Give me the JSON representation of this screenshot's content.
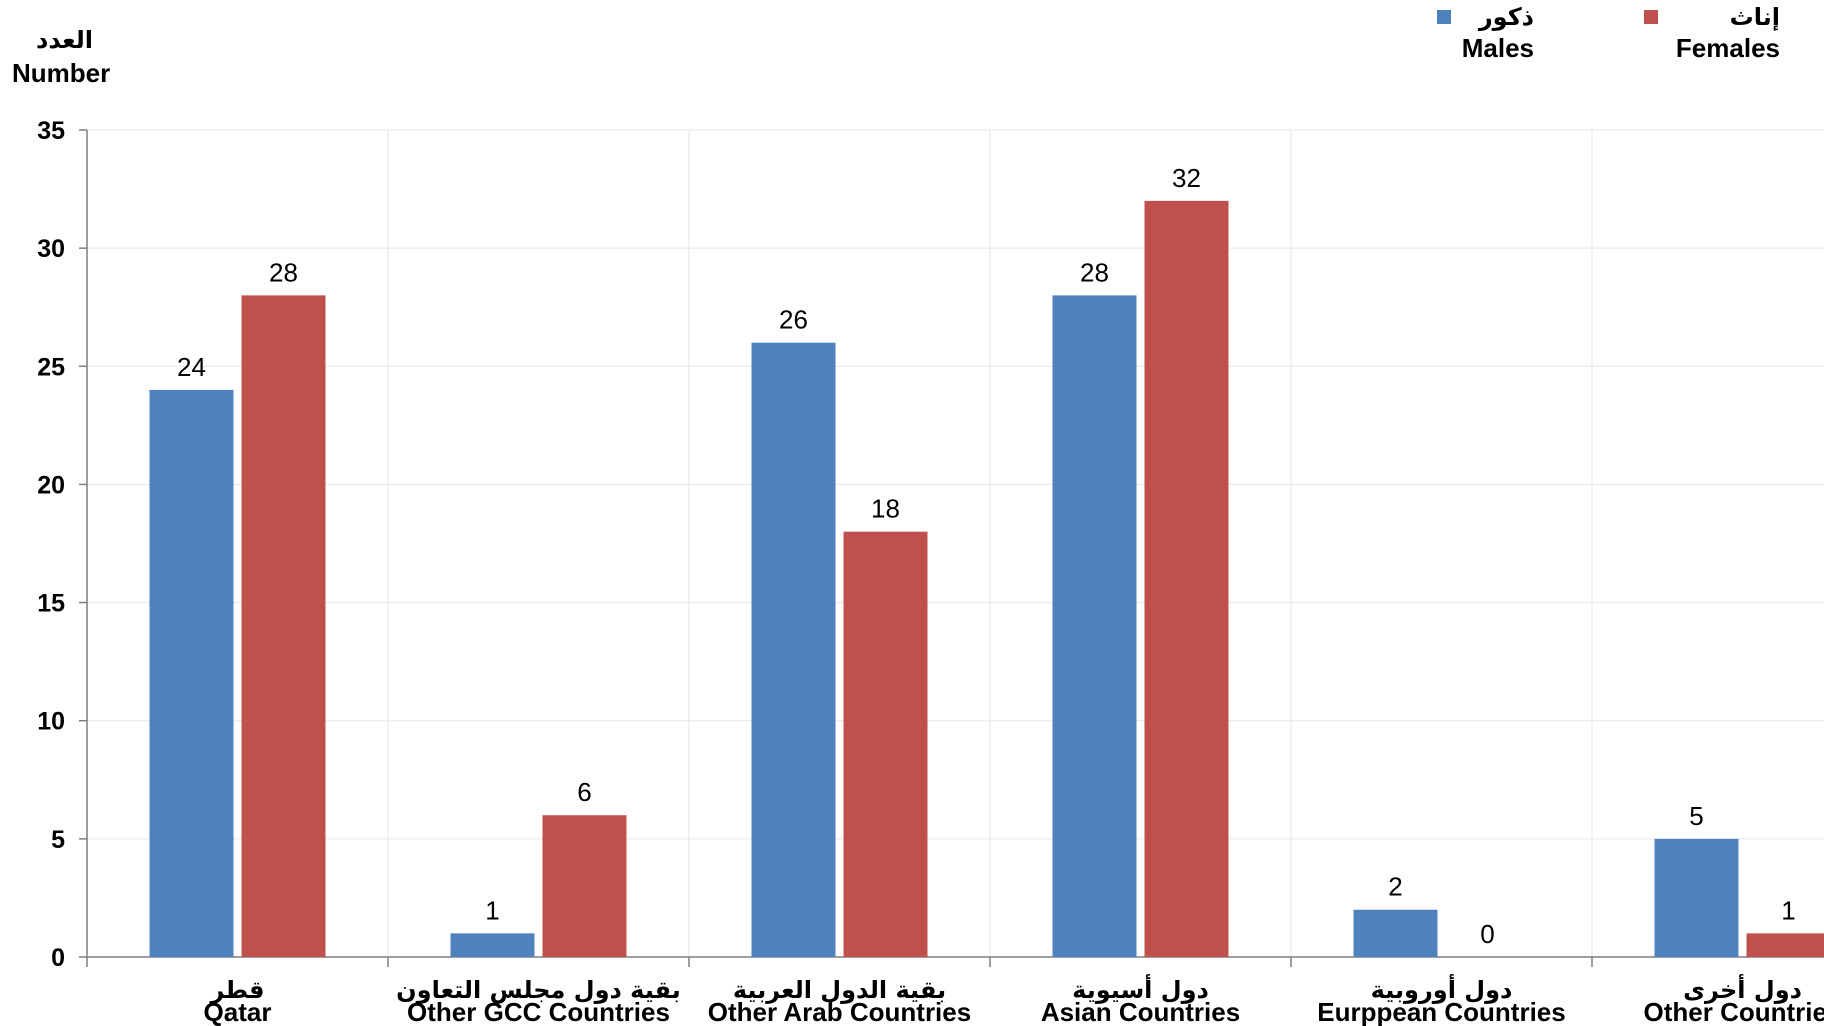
{
  "chart_data": {
    "type": "bar",
    "y_axis_title": {
      "ar": "العدد",
      "en": "Number"
    },
    "ylim": [
      0,
      35
    ],
    "yticks": [
      0,
      5,
      10,
      15,
      20,
      25,
      30,
      35
    ],
    "grid": true,
    "legend_placement": "top-right",
    "categories": [
      {
        "ar": "قطر",
        "en": "Qatar"
      },
      {
        "ar": "بقية دول مجلس التعاون",
        "en": "Other GCC Countries"
      },
      {
        "ar": "بقية الدول العربية",
        "en": "Other Arab Countries"
      },
      {
        "ar": "دول أسيوية",
        "en": "Asian Countries"
      },
      {
        "ar": "دول أوروبية",
        "en": "Eurppean Countries"
      },
      {
        "ar": "دول أخرى",
        "en": "Other Countries"
      }
    ],
    "series": [
      {
        "name_ar": "ذكور",
        "name_en": "Males",
        "color": "#4F81BD",
        "values": [
          24,
          1,
          26,
          28,
          2,
          5
        ]
      },
      {
        "name_ar": "إناث",
        "name_en": "Females",
        "color": "#C0504D",
        "values": [
          28,
          6,
          18,
          32,
          0,
          1
        ]
      }
    ]
  }
}
